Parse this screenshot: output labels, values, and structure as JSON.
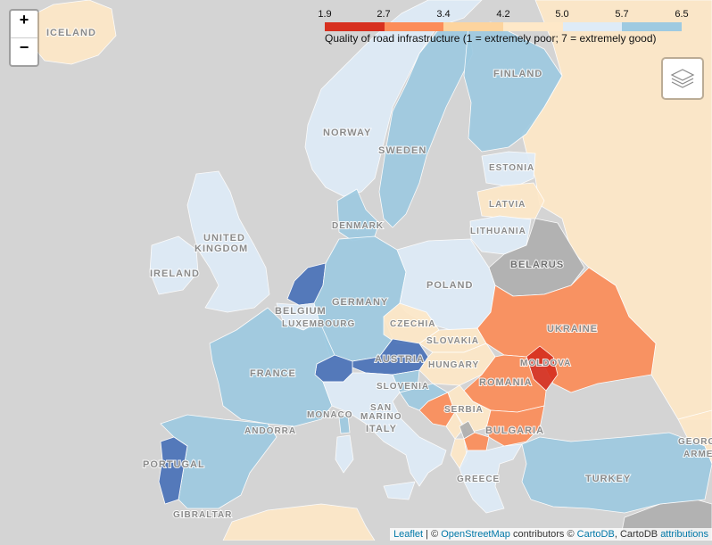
{
  "colors": {
    "sea": "#d4d4d4",
    "class_1_9": "#d7301f",
    "class_2_7": "#fc8d59",
    "class_3_4": "#fdd49e",
    "class_4_2": "#fee8c8",
    "class_5_0": "#deebf7",
    "class_5_7": "#9ecae1",
    "class_6_5": "#4a72b8",
    "no_data": "#b0b0b0"
  },
  "legend": {
    "title": "Quality of road infrastructure (1 = extremely poor; 7 = extremely good)",
    "ticks": [
      "1.9",
      "2.7",
      "3.4",
      "4.2",
      "5.0",
      "5.7",
      "6.5"
    ],
    "bar_colors": [
      "#d7301f",
      "#fc8d59",
      "#fdd49e",
      "#fee8c8",
      "#deebf7",
      "#9ecae1",
      "#4a72b8"
    ]
  },
  "zoom": {
    "in_label": "+",
    "out_label": "−"
  },
  "layers_control": {
    "icon": "layers-icon"
  },
  "attribution": {
    "leaflet": "Leaflet",
    "sep1": " | © ",
    "osm": "OpenStreetMap",
    "contrib": " contributors © ",
    "cartodb": "CartoDB",
    "cartodb2": ", CartoDB ",
    "attributions": "attributions"
  },
  "map_labels": {
    "iceland": "ICELAND",
    "norway": "NORWAY",
    "sweden": "SWEDEN",
    "finland": "FINLAND",
    "estonia": "ESTONIA",
    "latvia": "LATVIA",
    "lithuania": "LITHUANIA",
    "denmark": "DENMARK",
    "united": "UNITED",
    "kingdom": "KINGDOM",
    "ireland": "IRELAND",
    "belarus": "BELARUS",
    "poland": "POLAND",
    "germany": "GERMANY",
    "belgium": "BELGIUM",
    "luxembourg": "LUXEMBOURG",
    "czechia": "CZECHIA",
    "slovakia": "SLOVAKIA",
    "ukraine": "UKRAINE",
    "moldova": "MOLDOVA",
    "austria": "AUSTRIA",
    "hungary": "HUNGARY",
    "france": "FRANCE",
    "slovenia": "SLOVENIA",
    "romania": "ROMANIA",
    "monaco": "MONACO",
    "san": "SAN",
    "marino": "MARINO",
    "serbia": "SERBIA",
    "andorra": "ANDORRA",
    "italy": "ITALY",
    "bulgaria": "BULGARIA",
    "portugal": "PORTUGAL",
    "greece": "GREECE",
    "turkey": "TURKEY",
    "gibraltar": "GIBRALTAR",
    "georgia": "GEORG",
    "armenia": "ARME"
  },
  "countries": {
    "iceland": 4.2,
    "norway": 5.0,
    "sweden": 5.7,
    "finland": 5.7,
    "estonia": 5.0,
    "latvia": 4.2,
    "lithuania": 5.0,
    "uk": 5.0,
    "ireland": 5.0,
    "denmark": 5.7,
    "netherlands": 6.5,
    "belgium": 5.0,
    "germany": 5.7,
    "poland": 5.0,
    "czechia": 4.2,
    "slovakia": 4.2,
    "austria": 6.5,
    "switzerland": 6.5,
    "france": 5.7,
    "spain": 5.7,
    "portugal": 6.5,
    "italy": 5.0,
    "slovenia": 5.7,
    "croatia": 5.7,
    "hungary": 4.2,
    "romania": 2.7,
    "moldova": 1.9,
    "ukraine": 2.7,
    "bulgaria": 2.7,
    "serbia": 4.2,
    "bosnia": 2.7,
    "montenegro": 4.2,
    "albania": 4.2,
    "macedonia": 2.7,
    "greece": 5.0,
    "turkey": 5.7,
    "russia": 4.2,
    "north_africa": 4.2
  }
}
